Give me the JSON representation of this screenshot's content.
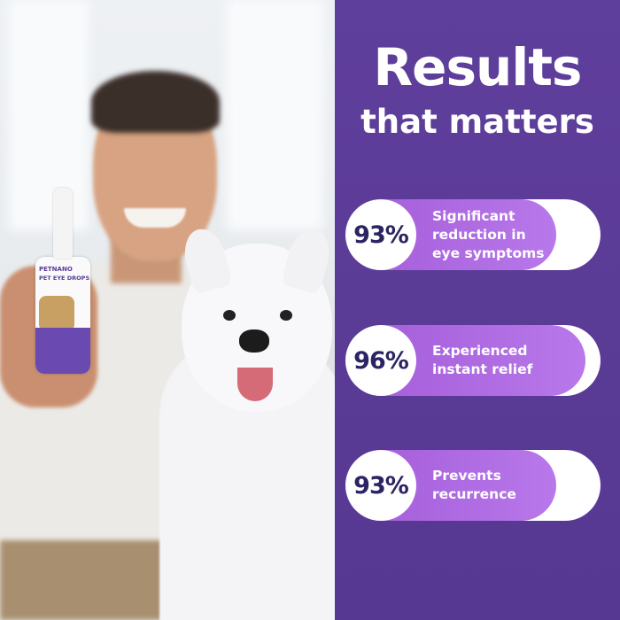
{
  "headline": {
    "line1": "Results",
    "line2": "that matters"
  },
  "stats": [
    {
      "percent": "93%",
      "value": 93,
      "lines": [
        "Significant",
        "reduction in",
        "eye symptoms"
      ]
    },
    {
      "percent": "96%",
      "value": 96,
      "lines": [
        "Experienced",
        "instant relief"
      ]
    },
    {
      "percent": "93%",
      "value": 93,
      "lines": [
        "Prevents",
        "recurrence"
      ]
    }
  ],
  "product": {
    "brand": "PETNANO",
    "name": "PET EYE DROPS"
  },
  "colors": {
    "panel": "#5c3d98",
    "fill": "#b06ee0",
    "percent_text": "#2b2462"
  }
}
